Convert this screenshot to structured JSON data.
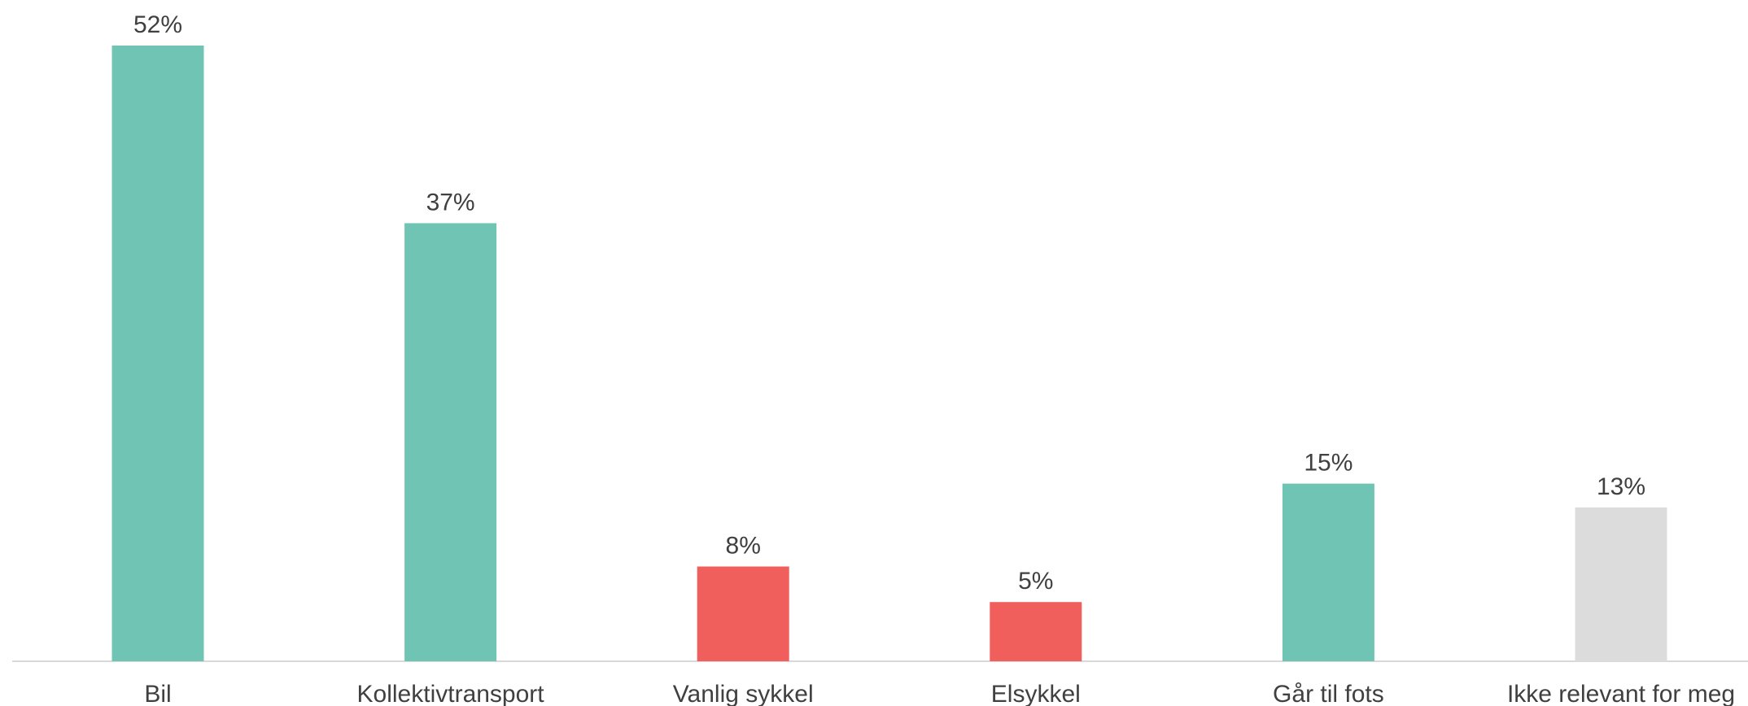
{
  "chart_data": {
    "type": "bar",
    "categories": [
      "Bil",
      "Kollektivtransport",
      "Vanlig sykkel",
      "Elsykkel",
      "Går til fots",
      "Ikke relevant for meg"
    ],
    "values": [
      52,
      37,
      8,
      5,
      15,
      13
    ],
    "value_labels": [
      "52%",
      "37%",
      "8%",
      "5%",
      "15%",
      "13%"
    ],
    "bar_colors": [
      "#70c4b4",
      "#70c4b4",
      "#f05f5c",
      "#f05f5c",
      "#70c4b4",
      "#dcdcdc"
    ],
    "axis_color": "#d9d9d9",
    "label_color": "#404040",
    "ylim": [
      0,
      52
    ],
    "grid": false,
    "legend": "none",
    "title": "",
    "xlabel": "",
    "ylabel": ""
  }
}
